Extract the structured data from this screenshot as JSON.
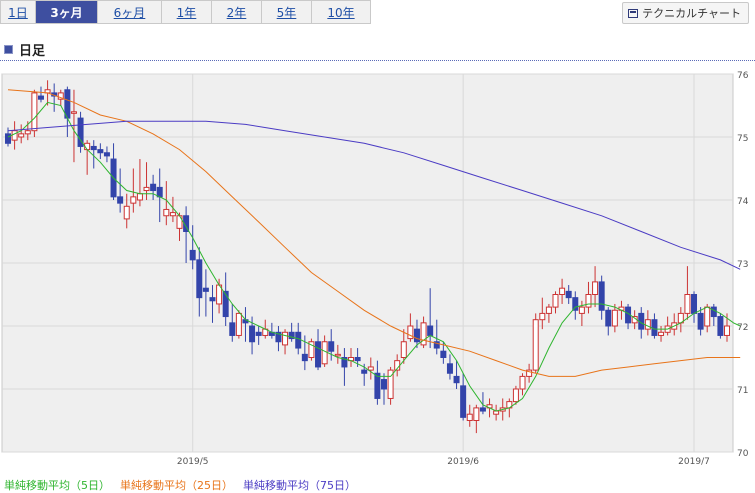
{
  "tabs": [
    {
      "label": "1日",
      "active": false
    },
    {
      "label": "3ヶ月",
      "active": true
    },
    {
      "label": "6ヶ月",
      "active": false
    },
    {
      "label": "1年",
      "active": false
    },
    {
      "label": "2年",
      "active": false
    },
    {
      "label": "5年",
      "active": false
    },
    {
      "label": "10年",
      "active": false
    }
  ],
  "technical_button": {
    "label": "テクニカルチャート",
    "icon": "chart-window-icon"
  },
  "period_label": "日足",
  "legend": [
    {
      "label": "単純移動平均（5日）",
      "color": "#2fb52f"
    },
    {
      "label": "単純移動平均（25日）",
      "color": "#e8741a"
    },
    {
      "label": "単純移動平均（75日）",
      "color": "#4b3cc4"
    }
  ],
  "chart_data": {
    "type": "candlestick",
    "ylim": [
      70,
      76
    ],
    "y_ticks": [
      70,
      71,
      72,
      73,
      74,
      75,
      76
    ],
    "x_ticks": [
      {
        "label": "2019/5",
        "index": 28
      },
      {
        "label": "2019/6",
        "index": 69
      },
      {
        "label": "2019/7",
        "index": 104
      }
    ],
    "up_color": "#cc3333",
    "down_color": "#3344aa",
    "grid": true,
    "candles": [
      [
        75.05,
        75.15,
        74.85,
        74.9
      ],
      [
        74.95,
        75.25,
        74.8,
        75.1
      ],
      [
        75.0,
        75.2,
        74.9,
        75.05
      ],
      [
        75.05,
        75.25,
        74.95,
        75.1
      ],
      [
        75.1,
        75.75,
        75.0,
        75.7
      ],
      [
        75.65,
        75.8,
        75.55,
        75.6
      ],
      [
        75.7,
        75.9,
        75.5,
        75.75
      ],
      [
        75.7,
        75.85,
        75.4,
        75.65
      ],
      [
        75.6,
        75.75,
        75.5,
        75.7
      ],
      [
        75.75,
        75.8,
        75.0,
        75.3
      ],
      [
        75.4,
        75.75,
        74.6,
        75.4
      ],
      [
        75.3,
        75.4,
        74.75,
        74.85
      ],
      [
        74.8,
        74.95,
        74.4,
        74.9
      ],
      [
        74.85,
        74.95,
        74.5,
        74.8
      ],
      [
        74.8,
        74.9,
        74.65,
        74.75
      ],
      [
        74.75,
        74.85,
        74.6,
        74.7
      ],
      [
        74.65,
        74.9,
        74.0,
        74.05
      ],
      [
        74.05,
        74.5,
        73.8,
        73.95
      ],
      [
        73.7,
        74.1,
        73.55,
        73.9
      ],
      [
        73.95,
        74.5,
        73.8,
        74.05
      ],
      [
        74.0,
        74.65,
        73.9,
        74.1
      ],
      [
        74.15,
        74.6,
        74.0,
        74.2
      ],
      [
        74.25,
        74.4,
        74.0,
        74.15
      ],
      [
        74.2,
        74.5,
        73.65,
        74.05
      ],
      [
        73.75,
        74.3,
        73.6,
        73.85
      ],
      [
        73.75,
        74.05,
        73.65,
        73.8
      ],
      [
        73.55,
        73.8,
        73.35,
        73.75
      ],
      [
        73.75,
        73.9,
        73.0,
        73.5
      ],
      [
        73.2,
        73.6,
        72.9,
        73.05
      ],
      [
        73.05,
        73.25,
        72.15,
        72.45
      ],
      [
        72.6,
        72.9,
        72.15,
        72.55
      ],
      [
        72.45,
        72.65,
        72.05,
        72.4
      ],
      [
        72.35,
        72.75,
        72.2,
        72.65
      ],
      [
        72.55,
        72.85,
        72.0,
        72.15
      ],
      [
        72.05,
        72.35,
        71.75,
        71.85
      ],
      [
        71.85,
        72.25,
        71.8,
        72.2
      ],
      [
        72.1,
        72.3,
        71.75,
        72.05
      ],
      [
        72.0,
        72.15,
        71.55,
        71.75
      ],
      [
        71.9,
        72.0,
        71.7,
        71.85
      ],
      [
        71.85,
        72.1,
        71.8,
        71.95
      ],
      [
        71.9,
        72.05,
        71.8,
        71.85
      ],
      [
        71.9,
        72.0,
        71.6,
        71.75
      ],
      [
        71.7,
        71.95,
        71.55,
        71.9
      ],
      [
        71.9,
        72.05,
        71.75,
        71.8
      ],
      [
        71.9,
        72.05,
        71.55,
        71.65
      ],
      [
        71.55,
        71.85,
        71.3,
        71.45
      ],
      [
        71.5,
        71.8,
        71.45,
        71.75
      ],
      [
        71.75,
        71.95,
        71.3,
        71.35
      ],
      [
        71.4,
        71.85,
        71.35,
        71.75
      ],
      [
        71.75,
        71.95,
        71.45,
        71.6
      ],
      [
        71.55,
        71.7,
        71.4,
        71.55
      ],
      [
        71.5,
        71.65,
        71.05,
        71.35
      ],
      [
        71.45,
        71.65,
        71.35,
        71.5
      ],
      [
        71.5,
        71.65,
        71.35,
        71.45
      ],
      [
        71.3,
        71.4,
        71.05,
        71.25
      ],
      [
        71.3,
        71.5,
        71.15,
        71.35
      ],
      [
        71.25,
        71.45,
        70.75,
        70.85
      ],
      [
        71.15,
        71.25,
        70.75,
        71.0
      ],
      [
        70.85,
        71.35,
        70.75,
        71.3
      ],
      [
        71.3,
        71.55,
        71.2,
        71.45
      ],
      [
        71.5,
        71.95,
        71.4,
        71.75
      ],
      [
        71.8,
        72.2,
        71.75,
        72.0
      ],
      [
        71.95,
        72.1,
        71.65,
        71.75
      ],
      [
        71.7,
        72.15,
        71.65,
        72.05
      ],
      [
        72.0,
        72.6,
        71.65,
        71.85
      ],
      [
        71.75,
        72.1,
        71.55,
        71.65
      ],
      [
        71.6,
        71.75,
        71.4,
        71.5
      ],
      [
        71.4,
        71.55,
        71.15,
        71.25
      ],
      [
        71.2,
        71.45,
        71.0,
        71.1
      ],
      [
        71.05,
        71.25,
        70.5,
        70.55
      ],
      [
        70.5,
        70.75,
        70.4,
        70.6
      ],
      [
        70.5,
        70.75,
        70.3,
        70.7
      ],
      [
        70.7,
        70.95,
        70.6,
        70.65
      ],
      [
        70.7,
        70.85,
        70.55,
        70.75
      ],
      [
        70.6,
        70.75,
        70.5,
        70.65
      ],
      [
        70.65,
        70.85,
        70.5,
        70.7
      ],
      [
        70.7,
        70.85,
        70.55,
        70.8
      ],
      [
        70.8,
        71.05,
        70.75,
        71.0
      ],
      [
        71.0,
        71.25,
        70.9,
        71.2
      ],
      [
        71.2,
        71.4,
        71.1,
        71.3
      ],
      [
        71.3,
        72.2,
        71.25,
        72.1
      ],
      [
        72.1,
        72.45,
        71.95,
        72.2
      ],
      [
        72.2,
        72.35,
        72.05,
        72.3
      ],
      [
        72.3,
        72.55,
        72.2,
        72.5
      ],
      [
        72.5,
        72.75,
        72.35,
        72.6
      ],
      [
        72.55,
        72.65,
        72.35,
        72.45
      ],
      [
        72.45,
        72.55,
        72.1,
        72.25
      ],
      [
        72.2,
        72.4,
        72.0,
        72.3
      ],
      [
        72.3,
        72.7,
        72.2,
        72.5
      ],
      [
        72.5,
        72.95,
        72.3,
        72.7
      ],
      [
        72.7,
        72.8,
        72.1,
        72.25
      ],
      [
        72.25,
        72.3,
        71.85,
        72.0
      ],
      [
        72.0,
        72.35,
        71.9,
        72.25
      ],
      [
        72.25,
        72.4,
        72.1,
        72.3
      ],
      [
        72.3,
        72.35,
        71.95,
        72.05
      ],
      [
        72.05,
        72.25,
        71.95,
        72.15
      ],
      [
        72.2,
        72.3,
        71.8,
        71.95
      ],
      [
        71.95,
        72.25,
        71.85,
        72.1
      ],
      [
        72.1,
        72.2,
        71.8,
        71.85
      ],
      [
        71.85,
        72.0,
        71.75,
        71.9
      ],
      [
        71.9,
        72.15,
        71.85,
        72.0
      ],
      [
        71.95,
        72.2,
        71.85,
        72.05
      ],
      [
        72.05,
        72.3,
        71.9,
        72.2
      ],
      [
        72.2,
        72.95,
        72.1,
        72.5
      ],
      [
        72.5,
        72.55,
        72.05,
        72.2
      ],
      [
        72.2,
        72.3,
        71.85,
        71.95
      ],
      [
        72.0,
        72.35,
        71.9,
        72.3
      ],
      [
        72.3,
        72.35,
        72.0,
        72.15
      ],
      [
        72.15,
        72.2,
        71.8,
        71.85
      ],
      [
        71.85,
        72.2,
        71.75,
        72.0
      ]
    ],
    "series": [
      {
        "name": "単純移動平均（5日）",
        "color": "#2fb52f",
        "values": [
          [
            0,
            75.0
          ],
          [
            2,
            75.1
          ],
          [
            4,
            75.3
          ],
          [
            6,
            75.55
          ],
          [
            8,
            75.5
          ],
          [
            10,
            75.1
          ],
          [
            12,
            74.8
          ],
          [
            14,
            74.6
          ],
          [
            16,
            74.35
          ],
          [
            18,
            74.15
          ],
          [
            20,
            74.1
          ],
          [
            22,
            74.1
          ],
          [
            24,
            74.0
          ],
          [
            26,
            73.75
          ],
          [
            28,
            73.4
          ],
          [
            30,
            73.0
          ],
          [
            32,
            72.65
          ],
          [
            34,
            72.35
          ],
          [
            36,
            72.1
          ],
          [
            38,
            72.0
          ],
          [
            40,
            71.9
          ],
          [
            42,
            71.85
          ],
          [
            44,
            71.8
          ],
          [
            46,
            71.7
          ],
          [
            48,
            71.6
          ],
          [
            50,
            71.5
          ],
          [
            52,
            71.45
          ],
          [
            54,
            71.35
          ],
          [
            56,
            71.2
          ],
          [
            58,
            71.2
          ],
          [
            60,
            71.45
          ],
          [
            62,
            71.7
          ],
          [
            64,
            71.85
          ],
          [
            66,
            71.75
          ],
          [
            68,
            71.45
          ],
          [
            70,
            71.05
          ],
          [
            72,
            70.75
          ],
          [
            74,
            70.65
          ],
          [
            76,
            70.7
          ],
          [
            78,
            70.85
          ],
          [
            80,
            71.2
          ],
          [
            82,
            71.65
          ],
          [
            84,
            72.05
          ],
          [
            86,
            72.3
          ],
          [
            88,
            72.35
          ],
          [
            90,
            72.35
          ],
          [
            92,
            72.3
          ],
          [
            94,
            72.2
          ],
          [
            96,
            72.05
          ],
          [
            98,
            71.95
          ],
          [
            100,
            71.95
          ],
          [
            102,
            72.05
          ],
          [
            104,
            72.2
          ],
          [
            106,
            72.3
          ],
          [
            108,
            72.2
          ],
          [
            110,
            72.05
          ],
          [
            111,
            72.0
          ]
        ]
      },
      {
        "name": "単純移動平均（25日）",
        "color": "#e8741a",
        "values": [
          [
            0,
            75.75
          ],
          [
            6,
            75.7
          ],
          [
            10,
            75.55
          ],
          [
            14,
            75.35
          ],
          [
            18,
            75.25
          ],
          [
            22,
            75.05
          ],
          [
            26,
            74.8
          ],
          [
            30,
            74.45
          ],
          [
            34,
            74.05
          ],
          [
            38,
            73.65
          ],
          [
            42,
            73.25
          ],
          [
            46,
            72.85
          ],
          [
            50,
            72.55
          ],
          [
            54,
            72.25
          ],
          [
            58,
            72.0
          ],
          [
            62,
            71.8
          ],
          [
            66,
            71.7
          ],
          [
            70,
            71.6
          ],
          [
            74,
            71.45
          ],
          [
            78,
            71.3
          ],
          [
            82,
            71.2
          ],
          [
            86,
            71.2
          ],
          [
            90,
            71.3
          ],
          [
            94,
            71.35
          ],
          [
            98,
            71.4
          ],
          [
            102,
            71.45
          ],
          [
            106,
            71.5
          ],
          [
            111,
            71.5
          ]
        ]
      },
      {
        "name": "単純移動平均（75日）",
        "color": "#4b3cc4",
        "values": [
          [
            0,
            75.1
          ],
          [
            6,
            75.15
          ],
          [
            12,
            75.2
          ],
          [
            18,
            75.25
          ],
          [
            24,
            75.25
          ],
          [
            30,
            75.25
          ],
          [
            36,
            75.2
          ],
          [
            42,
            75.1
          ],
          [
            48,
            75.0
          ],
          [
            54,
            74.9
          ],
          [
            60,
            74.75
          ],
          [
            66,
            74.55
          ],
          [
            72,
            74.35
          ],
          [
            78,
            74.15
          ],
          [
            84,
            73.95
          ],
          [
            90,
            73.75
          ],
          [
            96,
            73.5
          ],
          [
            102,
            73.25
          ],
          [
            108,
            73.05
          ],
          [
            111,
            72.9
          ]
        ]
      }
    ]
  }
}
